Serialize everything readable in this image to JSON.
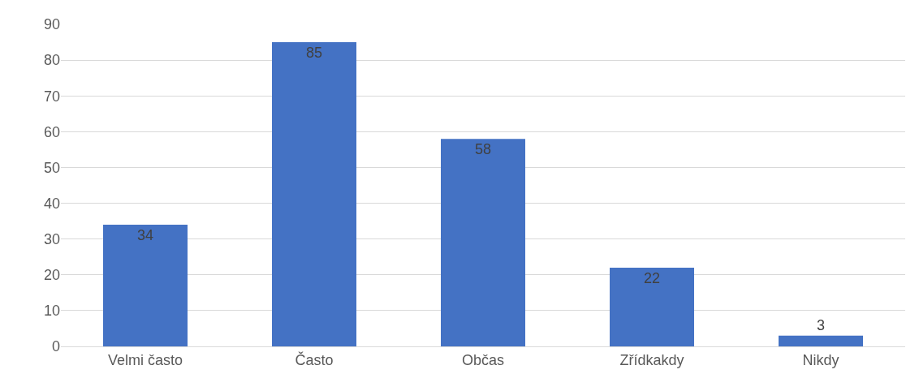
{
  "chart_data": {
    "type": "bar",
    "categories": [
      "Velmi často",
      "Často",
      "Občas",
      "Zřídkakdy",
      "Nikdy"
    ],
    "values": [
      34,
      85,
      58,
      22,
      3
    ],
    "color": "#4472c4",
    "ylim": [
      0,
      90
    ],
    "yticks": [
      0,
      10,
      20,
      30,
      40,
      50,
      60,
      70,
      80,
      90
    ],
    "grid": "y",
    "data_labels": true
  }
}
